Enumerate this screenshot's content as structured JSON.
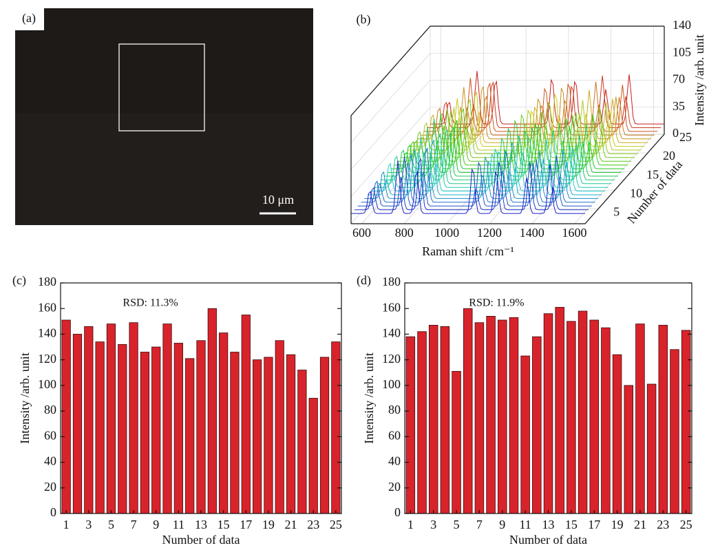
{
  "chart_data": [
    {
      "type": "image",
      "label": "(a)",
      "scale_bar": "10 μm"
    },
    {
      "type": "waterfall3d",
      "label": "(b)",
      "xlabel": "Raman shift /cm⁻¹",
      "ylabel": "Number of data",
      "zlabel": "Intensity /arb. unit",
      "xlim": [
        550,
        1650
      ],
      "xticks": [
        600,
        800,
        1000,
        1200,
        1400,
        1600
      ],
      "ylim": [
        1,
        25
      ],
      "yticks": [
        5,
        10,
        15,
        20,
        25
      ],
      "zlim": [
        0,
        140
      ],
      "zticks": [
        0,
        35,
        70,
        105,
        140
      ]
    },
    {
      "type": "bar",
      "label": "(c)",
      "annotation": "RSD: 11.3%",
      "xlabel": "Number of data",
      "ylabel": "Intensity /arb. unit",
      "color": "#d9232b",
      "categories": [
        1,
        null,
        3,
        null,
        5,
        null,
        7,
        null,
        9,
        null,
        11,
        null,
        13,
        null,
        15,
        null,
        17,
        null,
        19,
        null,
        21,
        null,
        23,
        null,
        25
      ],
      "values": [
        151,
        140,
        146,
        134,
        148,
        132,
        149,
        126,
        130,
        148,
        133,
        121,
        135,
        160,
        141,
        126,
        155,
        120,
        122,
        135,
        124,
        112,
        90,
        122,
        134
      ],
      "ylim": [
        0,
        180
      ],
      "yticks": [
        0,
        20,
        40,
        60,
        80,
        100,
        120,
        140,
        160,
        180
      ]
    },
    {
      "type": "bar",
      "label": "(d)",
      "annotation": "RSD: 11.9%",
      "xlabel": "Number of data",
      "ylabel": "Intensity /arb. unit",
      "color": "#d9232b",
      "categories": [
        1,
        null,
        3,
        null,
        5,
        null,
        7,
        null,
        9,
        null,
        11,
        null,
        13,
        null,
        15,
        null,
        17,
        null,
        19,
        null,
        21,
        null,
        23,
        null,
        25
      ],
      "values": [
        138,
        142,
        147,
        146,
        111,
        160,
        149,
        154,
        151,
        153,
        123,
        138,
        156,
        161,
        150,
        158,
        151,
        145,
        124,
        100,
        148,
        101,
        147,
        128,
        143
      ],
      "ylim": [
        0,
        180
      ],
      "yticks": [
        0,
        20,
        40,
        60,
        80,
        100,
        120,
        140,
        160,
        180
      ]
    }
  ]
}
